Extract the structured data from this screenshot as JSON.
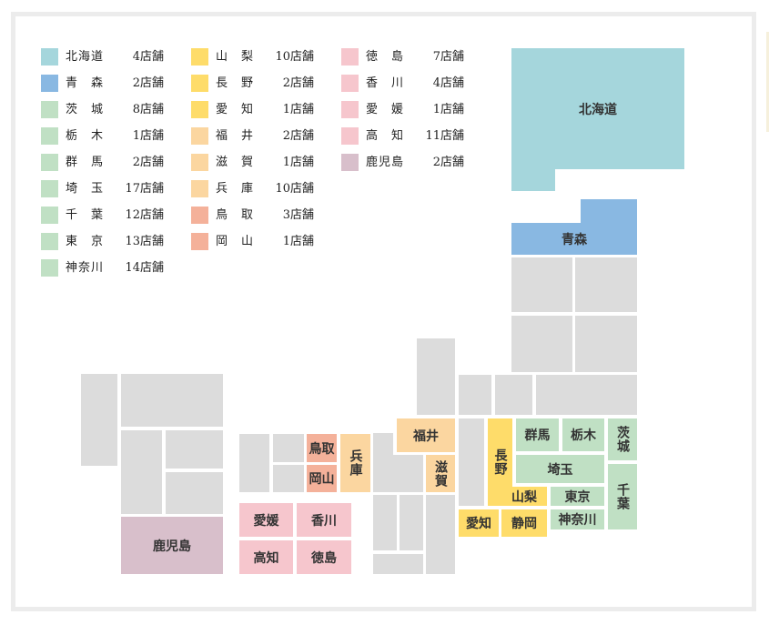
{
  "colors": {
    "hokkaido": "#a5d6dc",
    "aomori": "#89b8e2",
    "kanto": "#c0e0c4",
    "chubu": "#fedc6a",
    "kinki": "#fbd6a0",
    "chugoku": "#f4b19a",
    "shikoku": "#f6c6cd",
    "kyushu": "#d8bfcb",
    "none": "#dcdcdc"
  },
  "legend": [
    [
      {
        "name": "北海道",
        "count": "4店舗",
        "color": "#a5d6dc"
      },
      {
        "name": "青　森",
        "count": "2店舗",
        "color": "#89b8e2"
      },
      {
        "name": "茨　城",
        "count": "8店舗",
        "color": "#c0e0c4"
      },
      {
        "name": "栃　木",
        "count": "1店舗",
        "color": "#c0e0c4"
      },
      {
        "name": "群　馬",
        "count": "2店舗",
        "color": "#c0e0c4"
      },
      {
        "name": "埼　玉",
        "count": "17店舗",
        "color": "#c0e0c4"
      },
      {
        "name": "千　葉",
        "count": "12店舗",
        "color": "#c0e0c4"
      },
      {
        "name": "東　京",
        "count": "13店舗",
        "color": "#c0e0c4"
      },
      {
        "name": "神奈川",
        "count": "14店舗",
        "color": "#c0e0c4"
      }
    ],
    [
      {
        "name": "山　梨",
        "count": "10店舗",
        "color": "#fedc6a"
      },
      {
        "name": "長　野",
        "count": "2店舗",
        "color": "#fedc6a"
      },
      {
        "name": "愛　知",
        "count": "1店舗",
        "color": "#fedc6a"
      },
      {
        "name": "福　井",
        "count": "2店舗",
        "color": "#fbd6a0"
      },
      {
        "name": "滋　賀",
        "count": "1店舗",
        "color": "#fbd6a0"
      },
      {
        "name": "兵　庫",
        "count": "10店舗",
        "color": "#fbd6a0"
      },
      {
        "name": "鳥　取",
        "count": "3店舗",
        "color": "#f4b19a"
      },
      {
        "name": "岡　山",
        "count": "1店舗",
        "color": "#f4b19a"
      }
    ],
    [
      {
        "name": "徳　島",
        "count": "7店舗",
        "color": "#f6c6cd"
      },
      {
        "name": "香　川",
        "count": "4店舗",
        "color": "#f6c6cd"
      },
      {
        "name": "愛　媛",
        "count": "1店舗",
        "color": "#f6c6cd"
      },
      {
        "name": "高　知",
        "count": "11店舗",
        "color": "#f6c6cd"
      },
      {
        "name": "鹿児島",
        "count": "2店舗",
        "color": "#d8bfcb"
      }
    ]
  ],
  "map": {
    "hokkaido": "北海道",
    "aomori": "青森",
    "gunma": "群馬",
    "tochigi": "栃木",
    "ibaraki": "茨城",
    "saitama": "埼玉",
    "chiba": "千葉",
    "yamanashi": "山梨",
    "tokyo": "東京",
    "kanagawa": "神奈川",
    "nagano": "長野",
    "aichi": "愛知",
    "shizuoka": "静岡",
    "fukui": "福井",
    "shiga": "滋賀",
    "hyogo": "兵庫",
    "tottori": "鳥取",
    "okayama": "岡山",
    "ehime": "愛媛",
    "kagawa": "香川",
    "kochi": "高知",
    "tokushima": "徳島",
    "kagoshima": "鹿児島"
  }
}
